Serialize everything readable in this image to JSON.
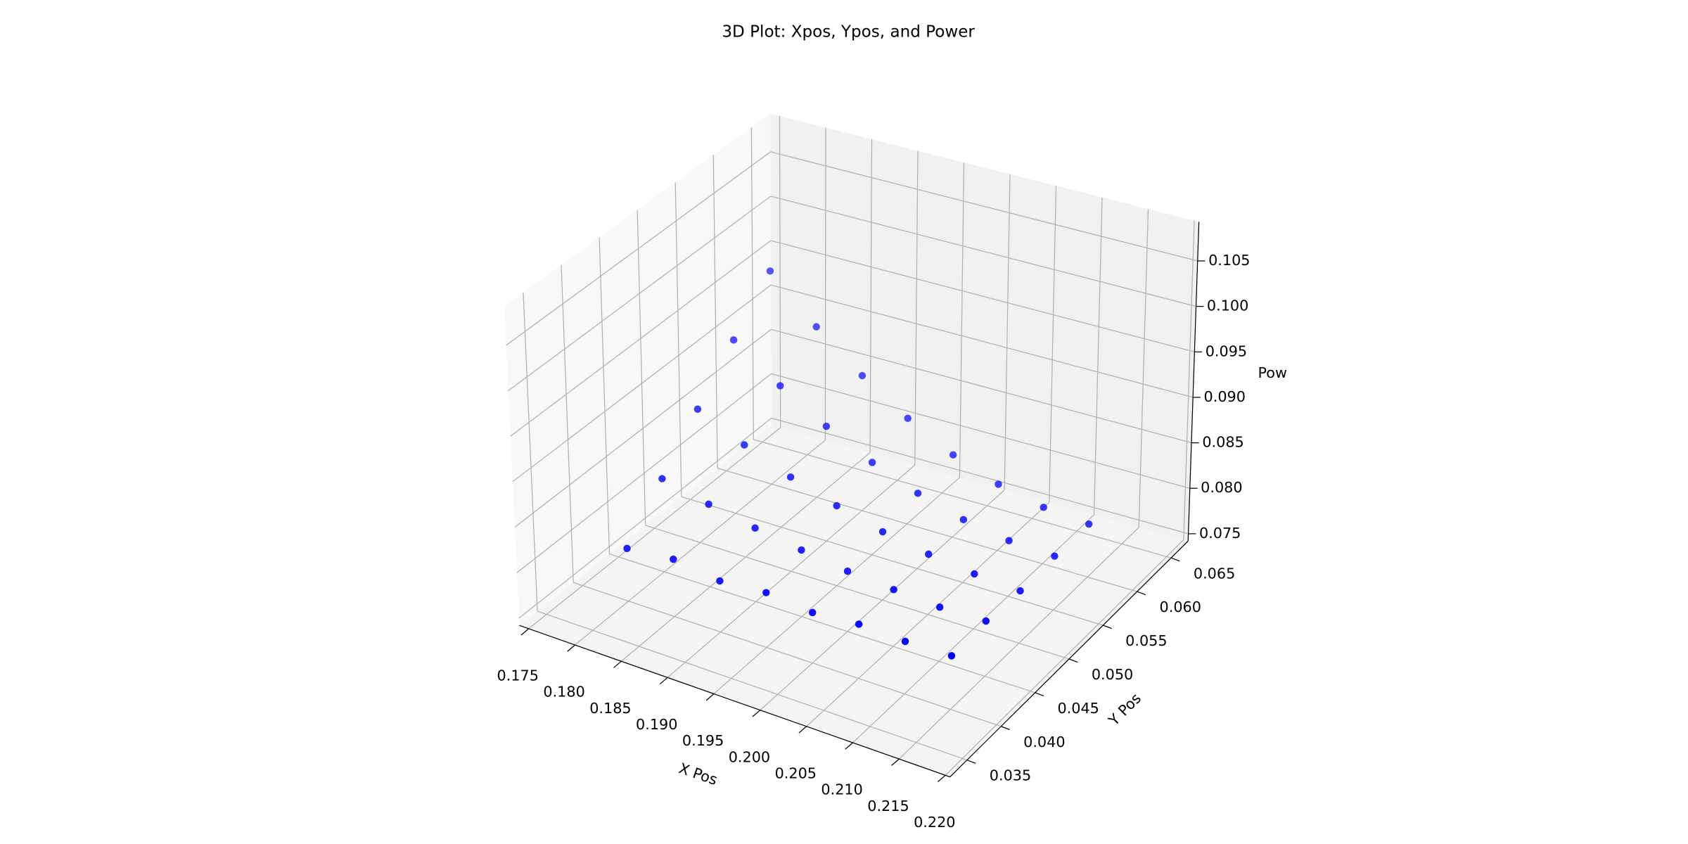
{
  "chart_data": {
    "type": "scatter3d",
    "title": "3D Plot: Xpos, Ypos, and Power",
    "xlabel": "X Pos",
    "ylabel": "Y Pos",
    "zlabel": "Pow",
    "color": "#0000ff",
    "grid": true,
    "xlim": [
      0.174,
      0.2205
    ],
    "ylim": [
      0.0325,
      0.0675
    ],
    "zlim": [
      0.0742,
      0.1093
    ],
    "xticks": [
      0.175,
      {
        "value": 0.18,
        "label": "0.180"
      },
      0.185,
      {
        "value": 0.19,
        "label": "0.190"
      },
      0.195,
      {
        "value": 0.2,
        "label": "0.200"
      },
      0.205,
      {
        "value": 0.21,
        "label": "0.210"
      },
      0.215,
      {
        "value": 0.22,
        "label": "0.220"
      }
    ],
    "yticks": [
      0.035,
      {
        "value": 0.04,
        "label": "0.040"
      },
      0.045,
      {
        "value": 0.05,
        "label": "0.050"
      },
      0.055,
      {
        "value": 0.06,
        "label": "0.060"
      },
      0.065
    ],
    "zticks": [
      0.075,
      {
        "value": 0.08,
        "label": "0.080"
      },
      0.085,
      {
        "value": 0.09,
        "label": "0.090"
      },
      0.095,
      {
        "value": 0.1,
        "label": "0.100"
      },
      0.105
    ],
    "x": [
      0.18,
      0.18,
      0.18,
      0.18,
      0.18,
      0.185,
      0.185,
      0.185,
      0.185,
      0.185,
      0.19,
      0.19,
      0.19,
      0.19,
      0.19,
      0.195,
      0.195,
      0.195,
      0.195,
      0.195,
      0.2,
      0.2,
      0.2,
      0.2,
      0.2,
      0.205,
      0.205,
      0.205,
      0.205,
      0.205,
      0.21,
      0.21,
      0.21,
      0.21,
      0.21,
      0.215,
      0.215,
      0.215,
      0.215,
      0.215
    ],
    "y": [
      0.04,
      0.045,
      0.05,
      0.055,
      0.06,
      0.04,
      0.045,
      0.05,
      0.055,
      0.06,
      0.04,
      0.045,
      0.05,
      0.055,
      0.06,
      0.04,
      0.045,
      0.05,
      0.055,
      0.06,
      0.04,
      0.045,
      0.05,
      0.055,
      0.06,
      0.04,
      0.045,
      0.05,
      0.055,
      0.06,
      0.04,
      0.045,
      0.05,
      0.055,
      0.06,
      0.04,
      0.045,
      0.05,
      0.055,
      0.06
    ],
    "z": [
      0.08,
      0.0845,
      0.089,
      0.0935,
      0.098,
      0.0805,
      0.0833,
      0.0866,
      0.0899,
      0.0932,
      0.0798,
      0.0823,
      0.0846,
      0.0869,
      0.0892,
      0.0802,
      0.0815,
      0.083,
      0.0844,
      0.0859,
      0.0797,
      0.0808,
      0.0817,
      0.0825,
      0.0833,
      0.0801,
      0.0804,
      0.0808,
      0.0811,
      0.0815,
      0.0799,
      0.0801,
      0.0802,
      0.0803,
      0.0804,
      0.08,
      0.0802,
      0.0799,
      0.0801,
      0.08
    ]
  }
}
